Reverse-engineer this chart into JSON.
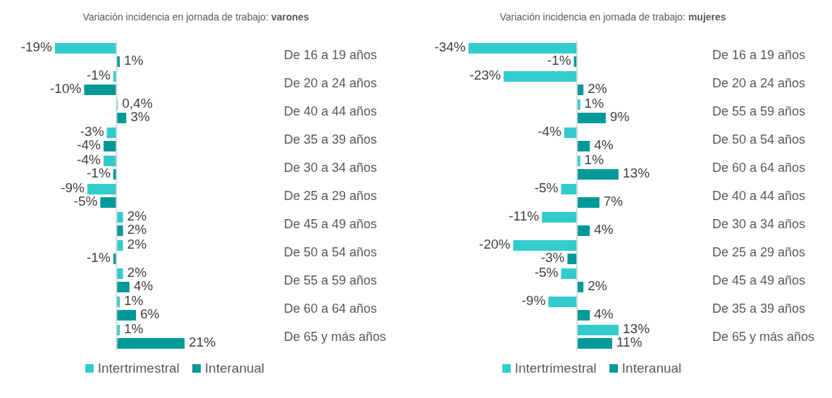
{
  "chart_data": [
    {
      "type": "bar",
      "orientation": "horizontal",
      "title": "Variación incidencia en jornada de trabajo: varones",
      "legend": "bottom",
      "categories": [
        "De 16 a 19 años",
        "De 20 a 24 años",
        "De 40 a 44 años",
        "De 35 a 39 años",
        "De 30 a 34 años",
        "De 25 a 29 años",
        "De 45 a 49 años",
        "De 50 a 54 años",
        "De 55 a 59 años",
        "De 60 a 64 años",
        "De 65 y más años"
      ],
      "series": [
        {
          "name": "Intertrimestral",
          "color": "#33cccc",
          "values": [
            -19,
            -1,
            0.4,
            -3,
            -4,
            -9,
            2,
            2,
            2,
            1,
            1
          ],
          "value_labels": [
            "-19%",
            "-1%",
            "0,4%",
            "-3%",
            "-4%",
            "-9%",
            "2%",
            "2%",
            "2%",
            "1%",
            "1%"
          ]
        },
        {
          "name": "Interanual",
          "color": "#009999",
          "values": [
            1,
            -10,
            3,
            -4,
            -1,
            -5,
            2,
            -1,
            4,
            6,
            21
          ],
          "value_labels": [
            "1%",
            "-10%",
            "3%",
            "-4%",
            "-1%",
            "-5%",
            "2%",
            "-1%",
            "4%",
            "6%",
            "21%"
          ]
        }
      ]
    },
    {
      "type": "bar",
      "orientation": "horizontal",
      "title": "Variación incidencia en jornada de trabajo: mujeres",
      "legend": "bottom",
      "categories": [
        "De 16 a 19 años",
        "De 20 a 24 años",
        "De 55 a 59 años",
        "De 50 a 54 años",
        "De 60 a 64 años",
        "De 40 a 44 años",
        "De 30 a 34 años",
        "De 25 a 29 años",
        "De 45 a 49 años",
        "De 35 a 39 años",
        "De 65 y más años"
      ],
      "series": [
        {
          "name": "Intertrimestral",
          "color": "#33cccc",
          "values": [
            -34,
            -23,
            1,
            -4,
            1,
            -5,
            -11,
            -20,
            -5,
            -9,
            13
          ],
          "value_labels": [
            "-34%",
            "-23%",
            "1%",
            "-4%",
            "1%",
            "-5%",
            "-11%",
            "-20%",
            "-5%",
            "-9%",
            "13%"
          ]
        },
        {
          "name": "Interanual",
          "color": "#009999",
          "values": [
            -1,
            2,
            9,
            4,
            13,
            7,
            4,
            -3,
            2,
            4,
            11
          ],
          "value_labels": [
            "-1%",
            "2%",
            "9%",
            "4%",
            "13%",
            "7%",
            "4%",
            "-3%",
            "2%",
            "4%",
            "11%"
          ]
        }
      ]
    }
  ]
}
